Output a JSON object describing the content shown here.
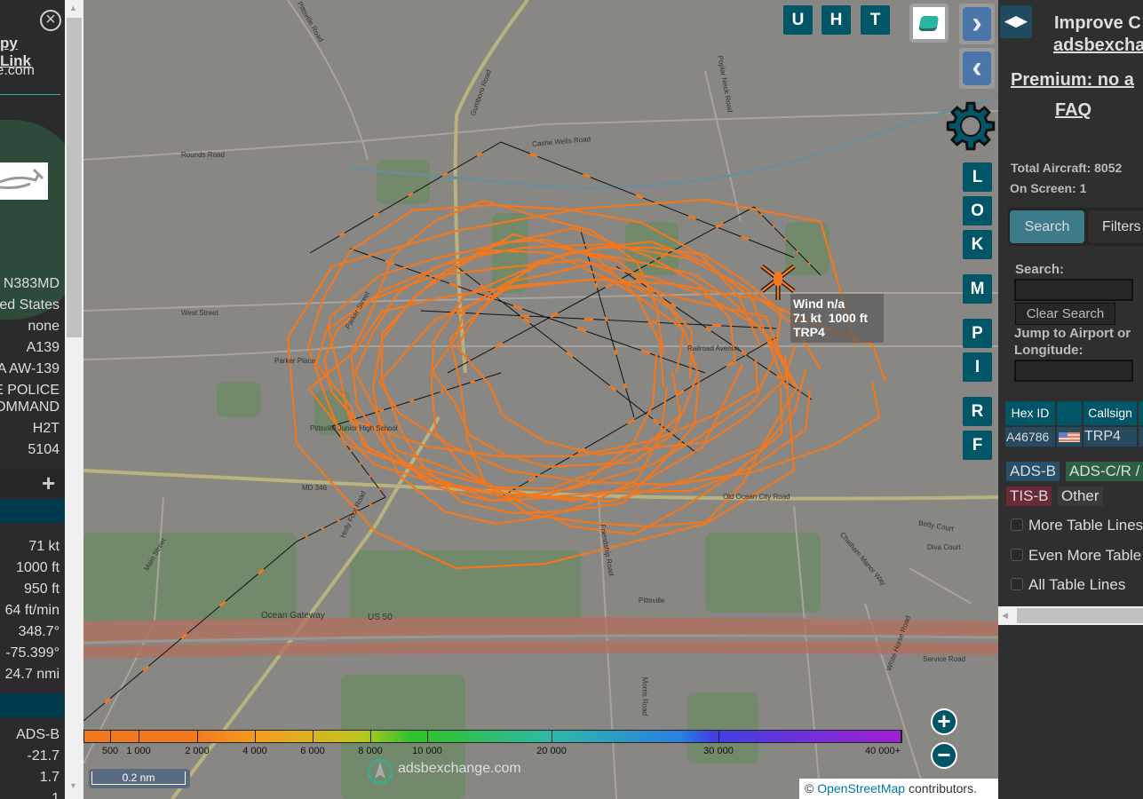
{
  "left_panel": {
    "copy_link": "py Link",
    "domain": "e.com",
    "rows": [
      "N383MD",
      "ed States",
      "none",
      "A139",
      "A AW-139",
      "E POLICE",
      "OMMAND",
      "H2T",
      "5104"
    ],
    "plus": "+",
    "stats": [
      "71 kt",
      "1000 ft",
      "950 ft",
      "64 ft/min",
      "348.7°",
      "-75.399°",
      "24.7 nmi"
    ],
    "signal": [
      "ADS-B",
      "-21.7",
      "1.7",
      "1"
    ]
  },
  "map": {
    "buttons_top": [
      "U",
      "H",
      "T"
    ],
    "side_buttons": [
      "L",
      "O",
      "K",
      "M",
      "P",
      "I",
      "R",
      "F"
    ],
    "aircraft_label": {
      "line1": "Wind n/a",
      "line2": "71 kt  1000 ft",
      "line3": "TRP4"
    },
    "track_color": "#f07820",
    "road_labels": [
      "Pittsville Road",
      "Gumboro Road",
      "Rounds Road",
      "Cashe Wells Road",
      "Poplar Neck Road",
      "West Street",
      "Parker Street",
      "Parker Place",
      "MD 346",
      "Pittsville Junior High School",
      "Old Ocean City Road",
      "Railroad Avenue",
      "Holly Foot Road",
      "Main Street",
      "Friendship Road",
      "Pittsville",
      "Betty Court",
      "Diva Court",
      "Chatham Manor Way",
      "Ocean Gateway",
      "US 50",
      "Service Road",
      "Morris Road",
      "White Horse Road"
    ],
    "altitude_scale": [
      "500",
      "1 000",
      "2 000",
      "4 000",
      "6 000",
      "8 000",
      "10 000",
      "20 000",
      "30 000",
      "40 000+"
    ],
    "scale_bar": "0.2 nm",
    "watermark": "adsbexchange.com",
    "attribution_prefix": "©",
    "attribution_link": "OpenStreetMap",
    "attribution_suffix": "contributors.",
    "zoom_in": "+",
    "zoom_out": "−"
  },
  "right_panel": {
    "improve": "Improve C",
    "adsbx_link": "adsbexcha",
    "premium": "Premium: no a",
    "faq": "FAQ",
    "total_aircraft": "Total Aircraft: 8052",
    "on_screen": "On Screen: 1",
    "tabs": [
      "Search",
      "Filters"
    ],
    "search_label": "Search:",
    "clear_search": "Clear Search",
    "jump_label_1": "Jump to Airport or",
    "jump_label_2": "Longitude:",
    "table": {
      "headers": [
        "Hex ID",
        "",
        "Callsign"
      ],
      "rows": [
        {
          "hex": "A46786",
          "flag": "US",
          "callsign": "TRP4"
        }
      ]
    },
    "source_tags": [
      "ADS-B",
      "ADS-C/R /",
      "TIS-B",
      "Other"
    ],
    "checkboxes": [
      "More Table Lines",
      "Even More Table",
      "All Table Lines"
    ]
  }
}
